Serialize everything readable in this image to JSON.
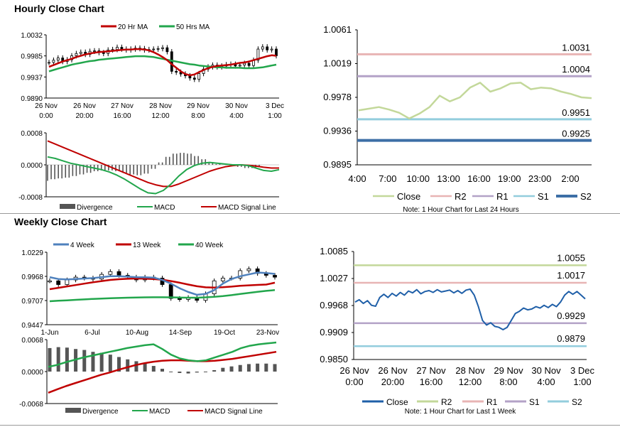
{
  "sections": {
    "hourly_title": "Hourly Close Chart",
    "weekly_title": "Weekly Close Chart"
  },
  "chart_data": [
    {
      "id": "hourly_price",
      "type": "candlestick",
      "ylim": [
        0.989,
        1.0032
      ],
      "y_ticks": [
        "1.0032",
        "0.9985",
        "0.9937",
        "0.9890"
      ],
      "x_labels": [
        [
          "26 Nov",
          "0:00"
        ],
        [
          "26 Nov",
          "20:00"
        ],
        [
          "27 Nov",
          "16:00"
        ],
        [
          "28 Nov",
          "12:00"
        ],
        [
          "29 Nov",
          "8:00"
        ],
        [
          "30 Nov",
          "4:00"
        ],
        [
          "3 Dec",
          "1:00"
        ]
      ],
      "legend": [
        "20 Hr MA",
        "50 Hrs MA"
      ],
      "colors": {
        "ma_fast": "#c00000",
        "ma_slow": "#22a64c",
        "candle": "#000000"
      },
      "close": [
        0.997,
        0.9975,
        0.998,
        0.9972,
        0.9976,
        0.9985,
        0.999,
        0.9993,
        0.9988,
        0.9995,
        0.9996,
        0.9992,
        0.999,
        0.9998,
        0.9999,
        1.0004,
        1.0,
        0.9998,
        1.0,
        1.0002,
        1.0001,
        0.9998,
        0.9999,
        1.0,
        1.0001,
        1.0003,
        0.9994,
        0.995,
        0.9948,
        0.9944,
        0.994,
        0.9935,
        0.9932,
        0.9945,
        0.9955,
        0.996,
        0.9964,
        0.996,
        0.9962,
        0.9965,
        0.9966,
        0.9962,
        0.9964,
        0.9968,
        0.9963,
        0.9975,
        1.0,
        1.0005,
        0.9998,
        1.0,
        0.9985
      ],
      "ma20": [
        0.996,
        0.9964,
        0.9968,
        0.9972,
        0.9975,
        0.9978,
        0.9982,
        0.9985,
        0.9988,
        0.999,
        0.9992,
        0.9993,
        0.9994,
        0.9995,
        0.9996,
        0.9997,
        0.9998,
        0.9999,
        0.9999,
        1.0,
        1.0,
        0.9999,
        0.9997,
        0.9993,
        0.9988,
        0.9982,
        0.9975,
        0.9966,
        0.9958,
        0.995,
        0.9944,
        0.9941,
        0.9943,
        0.9948,
        0.9953,
        0.9957,
        0.996,
        0.9962,
        0.9963,
        0.9964,
        0.9965,
        0.9967,
        0.9969,
        0.997,
        0.9972,
        0.9975,
        0.9978,
        0.9981,
        0.9984,
        0.9986,
        0.9985
      ],
      "ma50": [
        0.995,
        0.9953,
        0.9956,
        0.9959,
        0.9962,
        0.9965,
        0.9967,
        0.9969,
        0.9971,
        0.9973,
        0.9974,
        0.9976,
        0.9977,
        0.9978,
        0.9979,
        0.998,
        0.9981,
        0.9982,
        0.9983,
        0.9984,
        0.9984,
        0.9984,
        0.9983,
        0.9982,
        0.998,
        0.9978,
        0.9976,
        0.9974,
        0.9972,
        0.997,
        0.9968,
        0.9966,
        0.9965,
        0.9963,
        0.9962,
        0.9961,
        0.996,
        0.9959,
        0.9959,
        0.9958,
        0.9958,
        0.9958,
        0.9958,
        0.9957,
        0.9957,
        0.9957,
        0.9958,
        0.9959,
        0.9961,
        0.9963,
        0.9965
      ]
    },
    {
      "id": "hourly_macd",
      "type": "macd",
      "ylim": [
        -0.0008,
        0.0008
      ],
      "y_ticks": [
        "0.0008",
        "0.0000",
        "-0.0008"
      ],
      "legend": [
        "Divergence",
        "MACD",
        "MACD Signal Line"
      ],
      "colors": {
        "divergence": "#555555",
        "macd": "#22a64c",
        "signal": "#c00000"
      },
      "macd": [
        0.0002,
        0.00016,
        0.0001,
        4e-05,
        0.0,
        -4e-05,
        -8e-05,
        -0.00012,
        -0.00018,
        -0.00026,
        -0.00036,
        -0.00048,
        -0.0006,
        -0.0007,
        -0.00072,
        -0.00064,
        -0.00048,
        -0.00028,
        -0.00012,
        -2e-05,
        4e-05,
        6e-05,
        4e-05,
        2e-05,
        0.0,
        0.0,
        -2e-05,
        -8e-05,
        -0.00014,
        -0.00016,
        -0.00012
      ],
      "signal": [
        0.0006,
        0.00052,
        0.00044,
        0.00036,
        0.00028,
        0.0002,
        0.00012,
        4e-05,
        -4e-05,
        -0.00012,
        -0.0002,
        -0.00028,
        -0.00036,
        -0.00044,
        -0.0005,
        -0.00054,
        -0.00054,
        -0.00048,
        -0.0004,
        -0.00032,
        -0.00024,
        -0.00016,
        -0.0001,
        -5e-05,
        -2e-05,
        0.0,
        -1e-05,
        -3e-05,
        -6e-05,
        -8e-05,
        -8e-05
      ]
    },
    {
      "id": "hourly_close_pivot",
      "type": "line",
      "ylim": [
        0.9895,
        1.0061
      ],
      "y_ticks": [
        "1.0061",
        "1.0019",
        "0.9978",
        "0.9936",
        "0.9895"
      ],
      "x_labels": [
        "4:00",
        "7:00",
        "10:00",
        "13:00",
        "16:00",
        "19:00",
        "23:00",
        "2:00"
      ],
      "close": [
        0.9962,
        0.9964,
        0.9966,
        0.9963,
        0.9959,
        0.9952,
        0.9958,
        0.9966,
        0.998,
        0.9973,
        0.9978,
        0.999,
        0.9996,
        0.9985,
        0.9989,
        0.9995,
        0.9996,
        0.9988,
        0.999,
        0.9989,
        0.9985,
        0.9982,
        0.9978,
        0.9977
      ],
      "levels": {
        "R2": 1.0031,
        "R1": 1.0004,
        "S1": 0.9951,
        "S2": 0.9925
      },
      "level_labels": {
        "R2": "1.0031",
        "R1": "1.0004",
        "S1": "0.9951",
        "S2": "0.9925"
      },
      "legend": [
        "Close",
        "R2",
        "R1",
        "S1",
        "S2"
      ],
      "note": "Note: 1 Hour Chart for Last 24 Hours",
      "colors": {
        "close": "#c3d89a",
        "R2": "#e8b4b4",
        "R1": "#b3a2c7",
        "S1": "#93cddd",
        "S2": "#3d6fa6"
      }
    },
    {
      "id": "weekly_price",
      "type": "candlestick",
      "ylim": [
        0.9447,
        1.0229
      ],
      "y_ticks": [
        "1.0229",
        "0.9968",
        "0.9707",
        "0.9447"
      ],
      "x_labels": [
        "1-Jun",
        "6-Jul",
        "10-Aug",
        "14-Sep",
        "19-Oct",
        "23-Nov"
      ],
      "legend": [
        "4 Week",
        "13 Week",
        "40 Week"
      ],
      "colors": {
        "w4": "#4f81bd",
        "w13": "#c00000",
        "w40": "#22a64c"
      },
      "close": [
        0.992,
        0.988,
        0.993,
        0.996,
        0.995,
        0.994,
        0.999,
        1.002,
        0.998,
        0.996,
        0.993,
        0.996,
        0.995,
        0.988,
        0.973,
        0.972,
        0.974,
        0.971,
        0.978,
        0.992,
        0.995,
        0.995,
        1.003,
        1.005,
        1.0,
        0.998,
        0.996
      ],
      "w4": [
        0.996,
        0.994,
        0.9935,
        0.994,
        0.9945,
        0.995,
        0.996,
        0.997,
        0.997,
        0.9965,
        0.996,
        0.9958,
        0.9955,
        0.993,
        0.989,
        0.984,
        0.98,
        0.977,
        0.978,
        0.982,
        0.989,
        0.994,
        0.997,
        0.999,
        1.001,
        1.0005,
        0.9995
      ],
      "w13": [
        0.983,
        0.9845,
        0.986,
        0.9875,
        0.989,
        0.9905,
        0.9918,
        0.993,
        0.9938,
        0.9942,
        0.9945,
        0.9944,
        0.994,
        0.9932,
        0.9918,
        0.99,
        0.988,
        0.9862,
        0.985,
        0.9848,
        0.9852,
        0.9858,
        0.9866,
        0.9872,
        0.9876,
        0.988,
        0.99
      ],
      "w40": [
        0.97,
        0.9705,
        0.971,
        0.9715,
        0.972,
        0.9725,
        0.9728,
        0.9732,
        0.9735,
        0.9738,
        0.974,
        0.9742,
        0.9743,
        0.9743,
        0.9742,
        0.974,
        0.9738,
        0.9738,
        0.9742,
        0.9748,
        0.9756,
        0.9766,
        0.9778,
        0.979,
        0.9802,
        0.9812,
        0.982
      ]
    },
    {
      "id": "weekly_macd",
      "type": "macd",
      "ylim": [
        -0.0068,
        0.0068
      ],
      "y_ticks": [
        "0.0068",
        "0.0000",
        "-0.0068"
      ],
      "legend": [
        "Divergence",
        "MACD",
        "MACD Signal Line"
      ],
      "colors": {
        "divergence": "#555555",
        "macd": "#22a64c",
        "signal": "#c00000"
      },
      "divergence": [
        0.005,
        0.0052,
        0.0051,
        0.0048,
        0.0046,
        0.0042,
        0.004,
        0.0036,
        0.0031,
        0.0026,
        0.0022,
        0.0017,
        0.0012,
        0.0006,
        0.0,
        -0.0003,
        -0.0004,
        -0.0002,
        0.0,
        0.0003,
        0.0008,
        0.0011,
        0.0014,
        0.0016,
        0.0017,
        0.0017,
        0.0016
      ],
      "macd": [
        0.001,
        0.0014,
        0.002,
        0.0025,
        0.003,
        0.0034,
        0.0038,
        0.0042,
        0.0046,
        0.005,
        0.0053,
        0.0056,
        0.0058,
        0.0048,
        0.0036,
        0.0028,
        0.0024,
        0.0022,
        0.0024,
        0.003,
        0.0036,
        0.0042,
        0.005,
        0.0055,
        0.0058,
        0.006,
        0.0062
      ],
      "signal": [
        -0.0045,
        -0.0038,
        -0.0031,
        -0.0025,
        -0.0019,
        -0.0013,
        -0.0007,
        -0.0002,
        0.0004,
        0.0009,
        0.0014,
        0.0018,
        0.0021,
        0.0023,
        0.0024,
        0.0024,
        0.0023,
        0.0022,
        0.0022,
        0.0023,
        0.0025,
        0.0027,
        0.003,
        0.0033,
        0.0036,
        0.0039,
        0.0042
      ]
    },
    {
      "id": "weekly_close_pivot",
      "type": "line",
      "ylim": [
        0.985,
        1.0085
      ],
      "y_ticks": [
        "1.0085",
        "1.0027",
        "0.9968",
        "0.9909",
        "0.9850"
      ],
      "x_labels": [
        [
          "26 Nov",
          "0:00"
        ],
        [
          "26 Nov",
          "20:00"
        ],
        [
          "27 Nov",
          "16:00"
        ],
        [
          "28 Nov",
          "12:00"
        ],
        [
          "29 Nov",
          "8:00"
        ],
        [
          "30 Nov",
          "4:00"
        ],
        [
          "3 Dec",
          "1:00"
        ]
      ],
      "close": [
        0.9975,
        0.998,
        0.9972,
        0.9978,
        0.9968,
        0.9966,
        0.9985,
        0.9992,
        0.9985,
        0.9994,
        0.9988,
        0.9996,
        0.999,
        0.9999,
        0.9995,
        1.0002,
        0.9993,
        0.9998,
        1.0,
        0.9996,
        1.0002,
        0.9997,
        0.9999,
        1.0001,
        0.9995,
        1.0,
        0.9994,
        1.0001,
        1.0003,
        0.999,
        0.9965,
        0.9935,
        0.9925,
        0.993,
        0.9922,
        0.992,
        0.9915,
        0.992,
        0.9935,
        0.995,
        0.9955,
        0.9962,
        0.9958,
        0.996,
        0.9965,
        0.9962,
        0.9968,
        0.9963,
        0.997,
        0.9965,
        0.9975,
        0.999,
        0.9998,
        0.9992,
        0.9998,
        0.999,
        0.9982
      ],
      "levels": {
        "R2": 1.0055,
        "R1": 1.0017,
        "S1": 0.9929,
        "S2": 0.9879
      },
      "level_labels": {
        "R2": "1.0055",
        "R1": "1.0017",
        "S1": "0.9929",
        "S2": "0.9879"
      },
      "legend": [
        "Close",
        "R2",
        "R1",
        "S1",
        "S2"
      ],
      "note": "Note: 1 Hour Chart for Last 1 Week",
      "colors": {
        "close": "#1f5fa8",
        "R2": "#c3d89a",
        "R1": "#e8b4b4",
        "S1": "#b3a2c7",
        "S2": "#93cddd"
      }
    }
  ]
}
